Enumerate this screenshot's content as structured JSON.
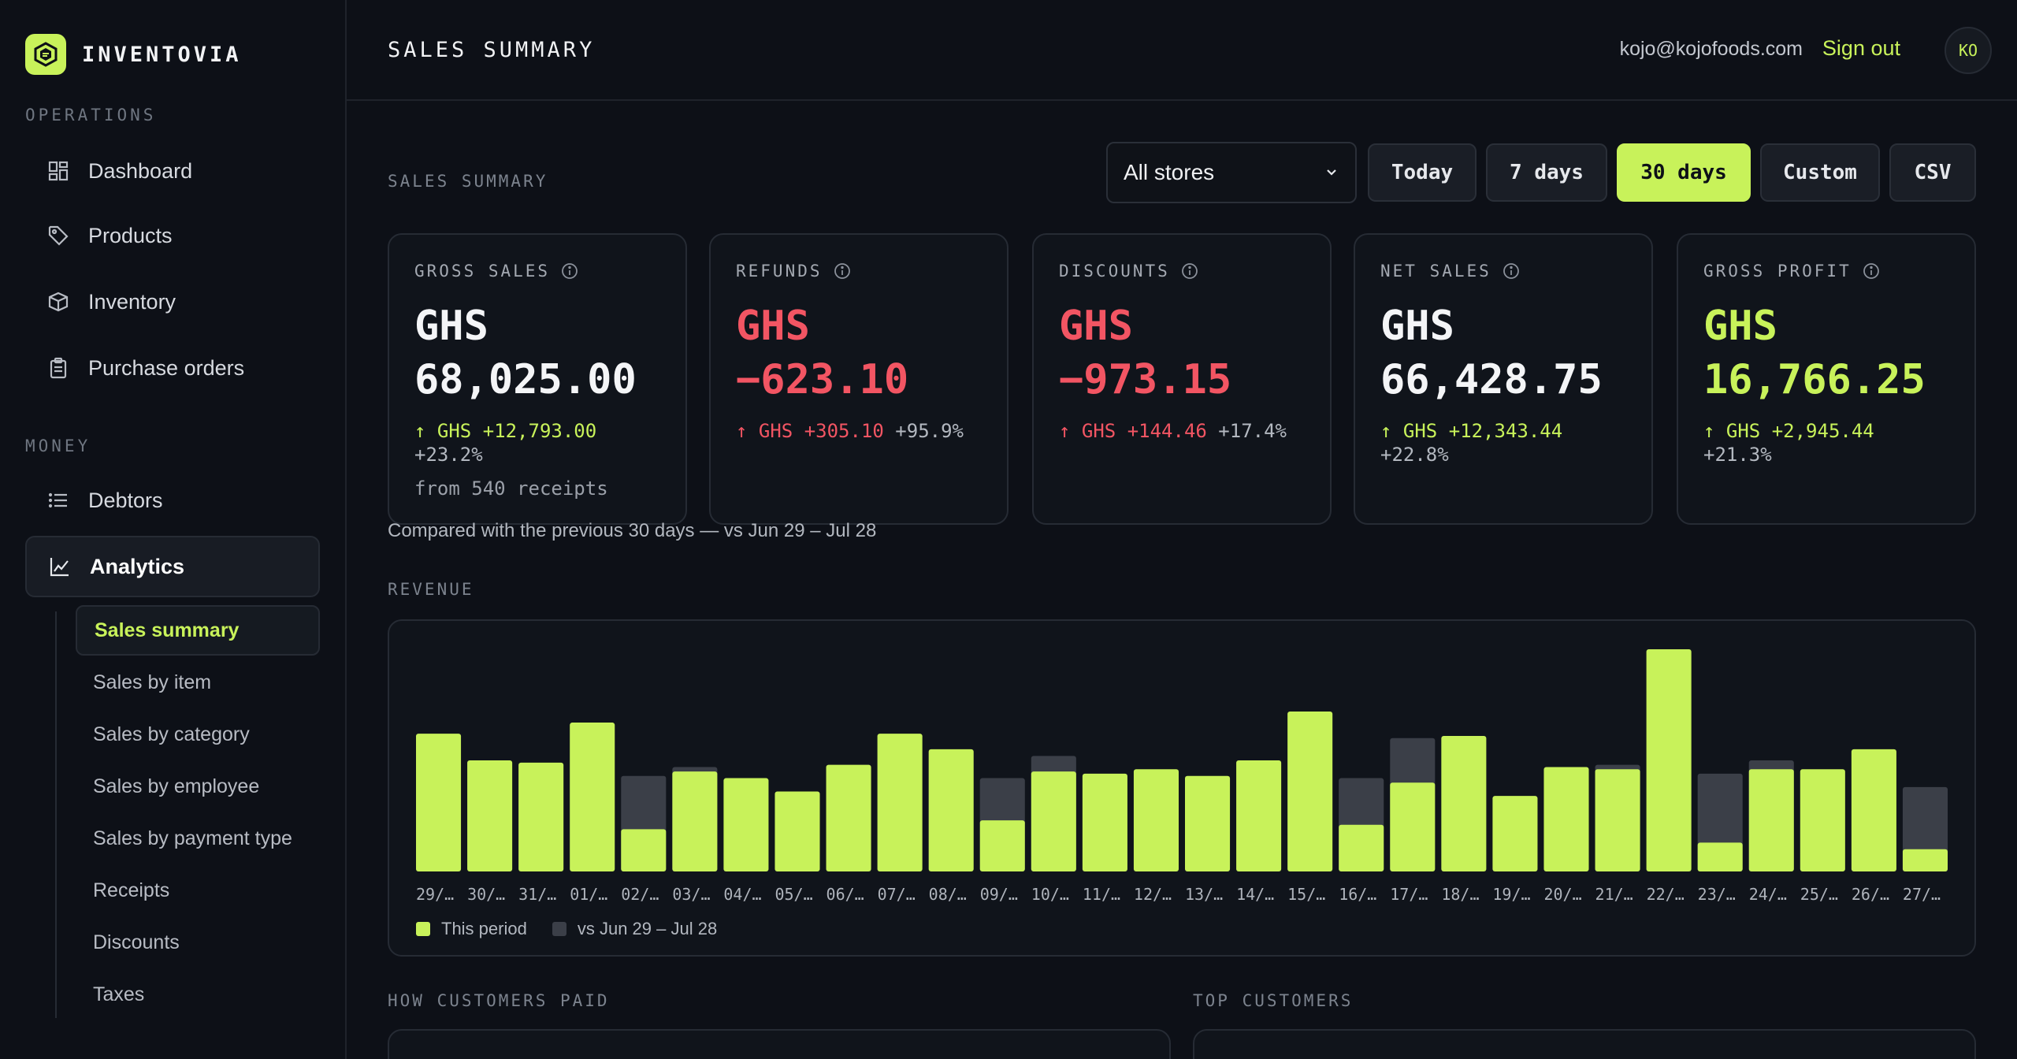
{
  "brand": {
    "name": "INVENTOVIA"
  },
  "sidebar": {
    "operations_label": "OPERATIONS",
    "operations": [
      {
        "label": "Dashboard",
        "icon": "grid-icon"
      },
      {
        "label": "Products",
        "icon": "tag-icon"
      },
      {
        "label": "Inventory",
        "icon": "box-icon"
      },
      {
        "label": "Purchase orders",
        "icon": "clipboard-icon"
      }
    ],
    "money_label": "MONEY",
    "money": [
      {
        "label": "Debtors",
        "icon": "list-icon"
      },
      {
        "label": "Analytics",
        "icon": "chart-line-icon"
      }
    ],
    "analytics_sub": [
      "Sales summary",
      "Sales by item",
      "Sales by category",
      "Sales by employee",
      "Sales by payment type",
      "Receipts",
      "Discounts",
      "Taxes"
    ]
  },
  "header": {
    "title": "SALES SUMMARY",
    "email": "kojo@kojofoods.com",
    "signout": "Sign out",
    "avatar": "KO"
  },
  "filters": {
    "label": "SALES SUMMARY",
    "store": "All stores",
    "ranges": [
      "Today",
      "7 days",
      "30 days",
      "Custom",
      "CSV"
    ],
    "active_range": "30 days"
  },
  "kpis": [
    {
      "label": "GROSS SALES",
      "currency": "GHS",
      "value": "68,025.00",
      "delta": "↑ GHS +12,793.00",
      "pct": "+23.2%",
      "foot": "from 540 receipts",
      "tone": "default"
    },
    {
      "label": "REFUNDS",
      "currency": "GHS",
      "value": "−623.10",
      "delta": "↑ GHS +305.10",
      "pct": "+95.9%",
      "foot": "",
      "tone": "neg"
    },
    {
      "label": "DISCOUNTS",
      "currency": "GHS",
      "value": "−973.15",
      "delta": "↑ GHS +144.46",
      "pct": "+17.4%",
      "foot": "",
      "tone": "neg"
    },
    {
      "label": "NET SALES",
      "currency": "GHS",
      "value": "66,428.75",
      "delta": "↑ GHS +12,343.44",
      "pct": "+22.8%",
      "foot": "",
      "tone": "default"
    },
    {
      "label": "GROSS PROFIT",
      "currency": "GHS",
      "value": "16,766.25",
      "delta": "↑ GHS +2,945.44",
      "pct": "+21.3%",
      "foot": "",
      "tone": "pos"
    }
  ],
  "compare_text": "Compared with the previous 30 days — vs Jun 29 – Jul 28",
  "revenue": {
    "label": "REVENUE"
  },
  "chart_data": {
    "type": "bar",
    "categories": [
      "29/…",
      "30/…",
      "31/…",
      "01/…",
      "02/…",
      "03/…",
      "04/…",
      "05/…",
      "06/…",
      "07/…",
      "08/…",
      "09/…",
      "10/…",
      "11/…",
      "12/…",
      "13/…",
      "14/…",
      "15/…",
      "16/…",
      "17/…",
      "18/…",
      "19/…",
      "20/…",
      "21/…",
      "22/…",
      "23/…",
      "24/…",
      "25/…",
      "26/…",
      "27/…"
    ],
    "series": [
      {
        "name": "This period",
        "values": [
          62,
          50,
          49,
          67,
          19,
          45,
          42,
          36,
          48,
          62,
          55,
          23,
          45,
          44,
          46,
          43,
          50,
          72,
          21,
          40,
          61,
          34,
          47,
          46,
          100,
          13,
          46,
          46,
          55,
          10
        ]
      },
      {
        "name": "vs Jun 29 – Jul 28",
        "values": [
          0,
          0,
          0,
          0,
          43,
          47,
          0,
          0,
          0,
          0,
          0,
          42,
          52,
          0,
          0,
          0,
          0,
          0,
          42,
          60,
          0,
          0,
          0,
          48,
          0,
          44,
          50,
          0,
          0,
          38
        ]
      }
    ],
    "colors": {
      "this": "#c8f25a",
      "prev": "#3b3f48"
    },
    "legend": "bottom-left"
  },
  "bottom": {
    "left_label": "HOW CUSTOMERS PAID",
    "right_label": "TOP CUSTOMERS"
  }
}
